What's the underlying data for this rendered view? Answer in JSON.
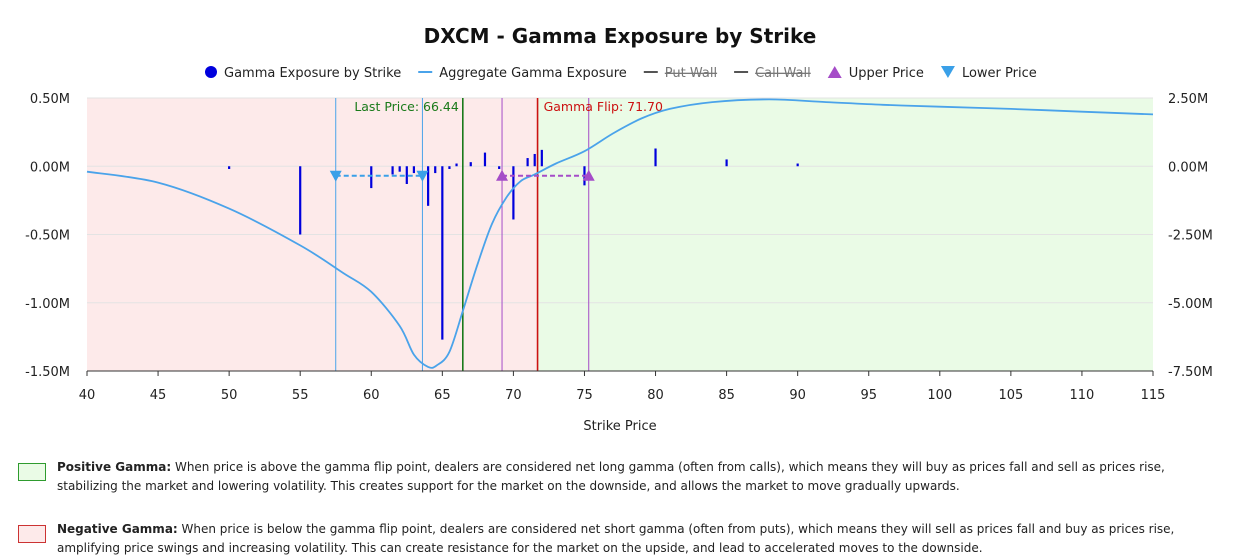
{
  "chart_data": {
    "type": "bar+line",
    "title": "DXCM - Gamma Exposure by Strike",
    "xlabel": "Strike Price",
    "xlim": [
      40,
      115
    ],
    "x_ticks": [
      40,
      45,
      50,
      55,
      60,
      65,
      70,
      75,
      80,
      85,
      90,
      95,
      100,
      105,
      110,
      115
    ],
    "left_axis": {
      "ylim": [
        -1.5,
        0.5
      ],
      "ticks": [
        0.5,
        0.0,
        -0.5,
        -1.0,
        -1.5
      ],
      "tick_labels": [
        "0.50M",
        "0.00M",
        "-0.50M",
        "-1.00M",
        "-1.50M"
      ]
    },
    "right_axis": {
      "ylim": [
        -7.5,
        2.5
      ],
      "ticks": [
        2.5,
        0.0,
        -2.5,
        -5.0,
        -7.5
      ],
      "tick_labels": [
        "2.50M",
        "0.00M",
        "-2.50M",
        "-5.00M",
        "-7.50M"
      ]
    },
    "legend": [
      {
        "label": "Gamma Exposure by Strike",
        "marker": "dot",
        "color": "#0000dd",
        "hidden": false
      },
      {
        "label": "Aggregate Gamma Exposure",
        "marker": "line",
        "color": "#4aa3ea",
        "hidden": false
      },
      {
        "label": "Put Wall",
        "marker": "line",
        "color": "#555555",
        "hidden": true
      },
      {
        "label": "Call Wall",
        "marker": "line",
        "color": "#555555",
        "hidden": true
      },
      {
        "label": "Upper Price",
        "marker": "triangle-up",
        "color": "#a54cc8",
        "hidden": false
      },
      {
        "label": "Lower Price",
        "marker": "triangle-down",
        "color": "#3aa0e8",
        "hidden": false
      }
    ],
    "series": [
      {
        "name": "Gamma Exposure by Strike",
        "kind": "bar",
        "axis": "left",
        "color": "#0000dd",
        "x": [
          50,
          55,
          60,
          61.5,
          62,
          62.5,
          63,
          64,
          64.5,
          65,
          65.5,
          66,
          67,
          68,
          69,
          70,
          71,
          71.5,
          72,
          75,
          80,
          85,
          90
        ],
        "values": [
          -0.02,
          -0.5,
          -0.16,
          -0.06,
          -0.04,
          -0.13,
          -0.05,
          -0.29,
          -0.05,
          -1.27,
          -0.02,
          0.02,
          0.03,
          0.1,
          -0.02,
          -0.39,
          0.06,
          0.09,
          0.12,
          -0.14,
          0.13,
          0.05,
          0.02
        ]
      },
      {
        "name": "Aggregate Gamma Exposure",
        "kind": "line",
        "axis": "right",
        "color": "#4aa3ea",
        "x": [
          40,
          45,
          50,
          55,
          58,
          60,
          62,
          63,
          64,
          64.6,
          65.5,
          66.5,
          67.5,
          68.5,
          69.5,
          70.5,
          71.5,
          73,
          75,
          77,
          79,
          81,
          84,
          88,
          92,
          96,
          100,
          105,
          110,
          115
        ],
        "values": [
          -0.2,
          -0.6,
          -1.55,
          -2.9,
          -3.9,
          -4.6,
          -5.85,
          -6.9,
          -7.35,
          -7.3,
          -6.8,
          -5.2,
          -3.55,
          -2.1,
          -1.15,
          -0.55,
          -0.3,
          0.1,
          0.55,
          1.2,
          1.75,
          2.1,
          2.35,
          2.45,
          2.35,
          2.25,
          2.18,
          2.1,
          2.0,
          1.9
        ]
      }
    ],
    "regions": [
      {
        "name": "Negative Gamma",
        "from": 40,
        "to": 71.7,
        "fill": "#fdeaea"
      },
      {
        "name": "Positive Gamma",
        "from": 71.7,
        "to": 115,
        "fill": "#eafbe6"
      }
    ],
    "vlines": [
      {
        "name": "lower-range-line",
        "x": 57.5,
        "color": "#4aa3ea"
      },
      {
        "name": "lower-price-line",
        "x": 63.6,
        "color": "#4aa3ea"
      },
      {
        "name": "last-price-line",
        "x": 66.44,
        "color": "#1a7a1a",
        "label": "Last Price: 66.44"
      },
      {
        "name": "upper-range-line",
        "x": 69.2,
        "color": "#a54cc8"
      },
      {
        "name": "gamma-flip-line",
        "x": 71.7,
        "color": "#cc1111",
        "label": "Gamma Flip: 71.70"
      },
      {
        "name": "upper-price-line",
        "x": 75.3,
        "color": "#a54cc8"
      }
    ],
    "range_markers": [
      {
        "name": "lower-price-range",
        "from": 57.5,
        "to": 63.6,
        "y": -0.07,
        "marker": "triangle-down",
        "color": "#3aa0e8"
      },
      {
        "name": "upper-price-range",
        "from": 69.2,
        "to": 75.3,
        "y": -0.07,
        "marker": "triangle-up",
        "color": "#a54cc8"
      }
    ],
    "grid": true
  },
  "notes": {
    "positive": {
      "heading": "Positive Gamma:",
      "text": " When price is above the gamma flip point, dealers are considered net long gamma (often from calls), which means they will buy as prices fall and sell as prices rise, stabilizing the market and lowering volatility. This creates support for the market on the downside, and allows the market to move gradually upwards.",
      "color": "#2e9b2e",
      "fill": "#eafbe6"
    },
    "negative": {
      "heading": "Negative Gamma:",
      "text": " When price is below the gamma flip point, dealers are considered net short gamma (often from puts), which means they will sell as prices fall and buy as prices rise, amplifying price swings and increasing volatility. This can create resistance for the market on the upside, and lead to accelerated moves to the downside.",
      "color": "#cc3333",
      "fill": "#fdeaea"
    }
  }
}
